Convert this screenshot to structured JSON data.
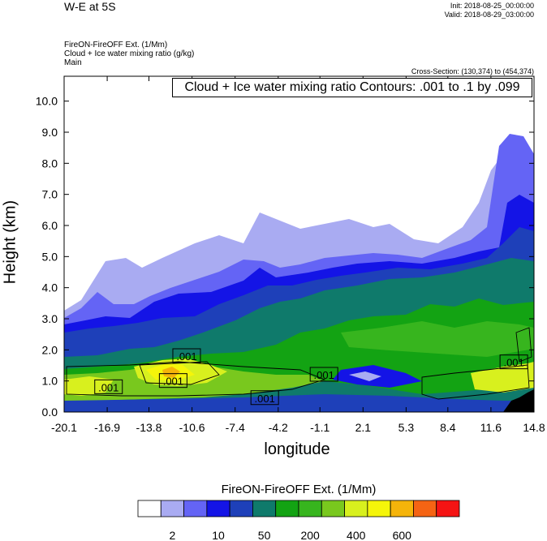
{
  "header": {
    "title": "W-E at 5S",
    "init": "Init: 2018-08-25_00:00:00",
    "valid": "Valid: 2018-08-29_03:00:00",
    "field1": "FireON-FireOFF Ext.   (1/Mm)",
    "field2": "Cloud + Ice water mixing ratio   (g/kg)",
    "field3": "Main",
    "cross_section": "Cross-Section: (130,374) to (454,374)"
  },
  "chart_data": {
    "type": "heatmap",
    "contour_label": "Cloud + Ice water mixing ratio Contours: .001 to .1 by .099",
    "xlabel": "longitude",
    "ylabel": "Height (km)",
    "xticks": [
      "-20.1",
      "-16.9",
      "-13.8",
      "-10.6",
      "-7.4",
      "-4.2",
      "-1.1",
      "2.1",
      "5.3",
      "8.4",
      "11.6",
      "14.8"
    ],
    "yticks": [
      "0.0",
      "1.0",
      "2.0",
      "3.0",
      "4.0",
      "5.0",
      "6.0",
      "7.0",
      "8.0",
      "9.0",
      "10.0"
    ],
    "xlim": [
      -20.1,
      14.8
    ],
    "ylim": [
      0,
      10.8
    ],
    "contour_annotations": [
      {
        "text": ".001",
        "x": -16.8,
        "y": 0.8
      },
      {
        "text": ".001",
        "x": -12.0,
        "y": 1.0
      },
      {
        "text": ".001",
        "x": -11.0,
        "y": 1.8
      },
      {
        "text": ".001",
        "x": -5.2,
        "y": 0.45
      },
      {
        "text": ".001",
        "x": -0.8,
        "y": 1.2
      },
      {
        "text": ".001",
        "x": 13.3,
        "y": 1.6
      }
    ],
    "colorbar": {
      "title": "FireON-FireOFF Ext.  (1/Mm)",
      "colors": [
        "#ffffff",
        "#a9abf2",
        "#6464f5",
        "#1414e6",
        "#1e40b9",
        "#0f7a6b",
        "#13a313",
        "#37b51e",
        "#79c81e",
        "#d8f01e",
        "#f5f50a",
        "#f5b40a",
        "#f56414",
        "#f51414"
      ],
      "labels": [
        "2",
        "10",
        "50",
        "200",
        "400",
        "600"
      ]
    }
  }
}
